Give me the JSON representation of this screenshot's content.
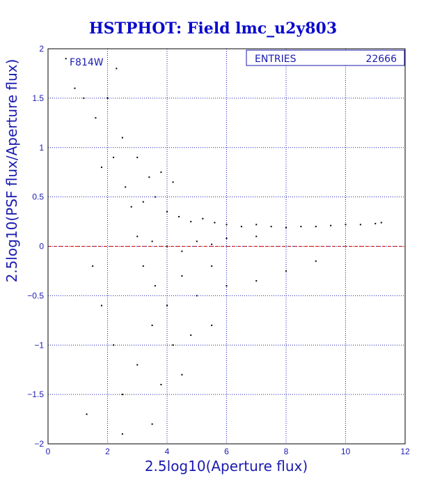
{
  "chart_data": {
    "type": "scatter",
    "title": "HSTPHOT: Field lmc_u2y803",
    "xlabel": "2.5log10(Aperture flux)",
    "ylabel": "2.5log10(PSF flux/Aperture flux)",
    "xlim": [
      0,
      12
    ],
    "ylim": [
      -2,
      2
    ],
    "x_ticks": [
      "0",
      "2",
      "4",
      "6",
      "8",
      "10",
      "12"
    ],
    "y_ticks": [
      "−2",
      "−1.5",
      "−1",
      "−0.5",
      "0",
      "0.5",
      "1",
      "1.5",
      "2"
    ],
    "grid": true,
    "reference_line_y": 0,
    "filter_label": "F814W",
    "stats_box": {
      "label": "ENTRIES",
      "value": "22666"
    },
    "points": [
      [
        0.6,
        1.9
      ],
      [
        0.9,
        1.6
      ],
      [
        1.2,
        1.5
      ],
      [
        1.6,
        1.3
      ],
      [
        2.0,
        1.5
      ],
      [
        2.3,
        1.8
      ],
      [
        2.5,
        1.1
      ],
      [
        2.2,
        0.9
      ],
      [
        1.8,
        0.8
      ],
      [
        2.6,
        0.6
      ],
      [
        3.0,
        0.9
      ],
      [
        3.4,
        0.7
      ],
      [
        3.8,
        0.75
      ],
      [
        4.2,
        0.65
      ],
      [
        2.8,
        0.4
      ],
      [
        3.2,
        0.45
      ],
      [
        3.6,
        0.5
      ],
      [
        4.0,
        0.35
      ],
      [
        4.4,
        0.3
      ],
      [
        4.8,
        0.25
      ],
      [
        5.2,
        0.28
      ],
      [
        5.6,
        0.24
      ],
      [
        6.0,
        0.22
      ],
      [
        6.5,
        0.2
      ],
      [
        7.0,
        0.22
      ],
      [
        7.5,
        0.2
      ],
      [
        8.0,
        0.19
      ],
      [
        8.5,
        0.2
      ],
      [
        9.0,
        0.2
      ],
      [
        9.5,
        0.21
      ],
      [
        10.0,
        0.22
      ],
      [
        10.5,
        0.22
      ],
      [
        11.0,
        0.23
      ],
      [
        11.2,
        0.24
      ],
      [
        3.0,
        0.1
      ],
      [
        3.5,
        0.05
      ],
      [
        4.0,
        0.0
      ],
      [
        4.5,
        -0.05
      ],
      [
        5.0,
        0.05
      ],
      [
        5.5,
        0.02
      ],
      [
        6.0,
        0.08
      ],
      [
        7.0,
        0.1
      ],
      [
        3.2,
        -0.2
      ],
      [
        3.6,
        -0.4
      ],
      [
        4.0,
        -0.6
      ],
      [
        4.5,
        -0.3
      ],
      [
        5.0,
        -0.5
      ],
      [
        5.5,
        -0.2
      ],
      [
        6.0,
        -0.4
      ],
      [
        7.0,
        -0.35
      ],
      [
        8.0,
        -0.25
      ],
      [
        9.0,
        -0.15
      ],
      [
        3.5,
        -0.8
      ],
      [
        4.2,
        -1.0
      ],
      [
        4.8,
        -0.9
      ],
      [
        5.5,
        -0.8
      ],
      [
        3.0,
        -1.2
      ],
      [
        3.8,
        -1.4
      ],
      [
        4.5,
        -1.3
      ],
      [
        2.5,
        -1.5
      ],
      [
        2.2,
        -1.0
      ],
      [
        1.5,
        -0.2
      ],
      [
        1.8,
        -0.6
      ],
      [
        1.3,
        -1.7
      ],
      [
        2.5,
        -1.9
      ],
      [
        3.5,
        -1.8
      ]
    ]
  }
}
